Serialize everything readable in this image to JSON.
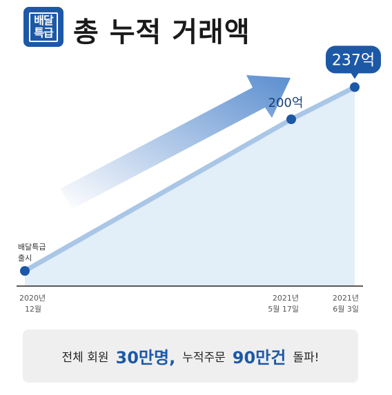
{
  "header": {
    "logo_line1": "배달",
    "logo_line2": "특급",
    "title": "총 누적 거래액"
  },
  "chart_data": {
    "type": "area",
    "title": "총 누적 거래액",
    "x": [
      "2020-12",
      "2021-05-17",
      "2021-06-03"
    ],
    "values": [
      0,
      200,
      237
    ],
    "value_labels": [
      "",
      "200억",
      "237억"
    ],
    "annotations": [
      {
        "x": "2020-12",
        "text_lines": [
          "배달특급",
          "출시"
        ]
      }
    ],
    "x_tick_labels": [
      {
        "line1": "2020년",
        "line2": "12월"
      },
      {
        "line1": "2021년",
        "line2": "5월 17일"
      },
      {
        "line1": "2021년",
        "line2": "6월 3일"
      }
    ],
    "ylim": [
      0,
      250
    ],
    "grid": false,
    "colors": {
      "line": "#a9c6e6",
      "fill": "#e2eef8",
      "point": "#1d58a6",
      "bubble": "#1d58a6",
      "arrow": "#5b8ecf"
    }
  },
  "banner": {
    "p1": "전체 회원",
    "big1": "30만명,",
    "p2": "누적주문",
    "big2": "90만건",
    "p3": "돌파!"
  }
}
